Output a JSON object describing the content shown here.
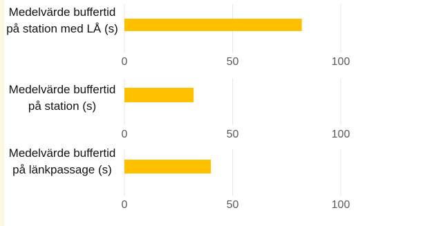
{
  "colors": {
    "bar": "#FFC000",
    "grid": "#e6e6e6",
    "tick_text": "#595959"
  },
  "chart_data": [
    {
      "type": "bar",
      "orientation": "horizontal",
      "categories": [
        "Medelvärde buffertid på station med LÅ (s)"
      ],
      "values": [
        82
      ],
      "xlim": [
        0,
        100
      ],
      "xticks": [
        "0",
        "50",
        "100"
      ],
      "grid": true
    },
    {
      "type": "bar",
      "orientation": "horizontal",
      "categories": [
        "Medelvärde buffertid på station (s)"
      ],
      "values": [
        32
      ],
      "xlim": [
        0,
        100
      ],
      "xticks": [
        "0",
        "50",
        "100"
      ],
      "grid": true
    },
    {
      "type": "bar",
      "orientation": "horizontal",
      "categories": [
        "Medelvärde buffertid på länkpassage (s)"
      ],
      "values": [
        40
      ],
      "xlim": [
        0,
        100
      ],
      "xticks": [
        "0",
        "50",
        "100"
      ],
      "grid": true
    }
  ]
}
